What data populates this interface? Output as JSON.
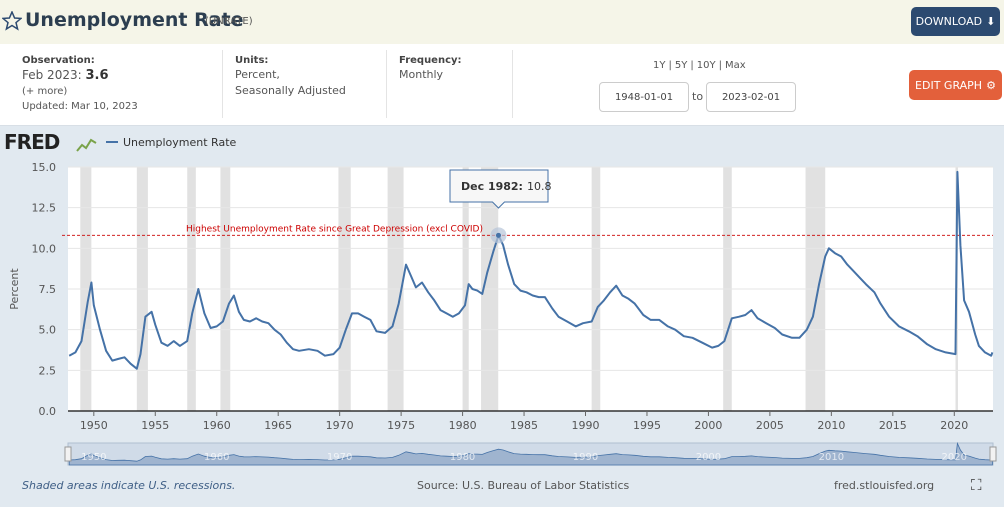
{
  "header": {
    "title": "Unemployment Rate",
    "series_id": "(UNRATE)",
    "download": "DOWNLOAD"
  },
  "info": {
    "observation": {
      "label": "Observation:",
      "date": "Feb 2023:",
      "value": "3.6",
      "more": "(+ more)",
      "updated": "Updated: Mar 10, 2023"
    },
    "units": {
      "label": "Units:",
      "lines": [
        "Percent,",
        "Seasonally Adjusted"
      ]
    },
    "frequency": {
      "label": "Frequency:",
      "value": "Monthly"
    },
    "range": {
      "links": [
        "1Y",
        "5Y",
        "10Y",
        "Max"
      ],
      "separator": "|",
      "start": "1948-01-01",
      "to": "to",
      "end": "2023-02-01"
    },
    "edit": "EDIT GRAPH"
  },
  "logo": "FRED",
  "chart_data": {
    "type": "line",
    "ylabel": "Percent",
    "xlim": [
      1947.9,
      2023.15
    ],
    "xticks": [
      1950,
      1955,
      1960,
      1965,
      1970,
      1975,
      1980,
      1985,
      1990,
      1995,
      2000,
      2005,
      2010,
      2015,
      2020
    ],
    "ylim": [
      0,
      15
    ],
    "yticks": [
      {
        "value": 0,
        "label": "0.0"
      },
      {
        "value": 2.5,
        "label": "2.5"
      },
      {
        "value": 5,
        "label": "5.0"
      },
      {
        "value": 7.5,
        "label": "7.5"
      },
      {
        "value": 10,
        "label": "10.0"
      },
      {
        "value": 12.5,
        "label": "12.5"
      },
      {
        "value": 15,
        "label": "15.0"
      }
    ],
    "grid": true,
    "x": [
      1948.0,
      1948.5,
      1949.0,
      1949.5,
      1949.8,
      1950.0,
      1950.5,
      1951.0,
      1951.5,
      1952.0,
      1952.5,
      1953.0,
      1953.5,
      1953.8,
      1954.2,
      1954.7,
      1955.0,
      1955.5,
      1956.0,
      1956.5,
      1957.0,
      1957.6,
      1958.0,
      1958.5,
      1959.0,
      1959.5,
      1960.0,
      1960.5,
      1961.0,
      1961.4,
      1961.8,
      1962.2,
      1962.7,
      1963.2,
      1963.7,
      1964.2,
      1964.7,
      1965.2,
      1965.7,
      1966.2,
      1966.7,
      1967.5,
      1968.2,
      1968.8,
      1969.5,
      1970.0,
      1970.5,
      1971.0,
      1971.5,
      1972.0,
      1972.5,
      1973.0,
      1973.7,
      1974.3,
      1974.8,
      1975.4,
      1975.8,
      1976.2,
      1976.7,
      1977.2,
      1977.7,
      1978.2,
      1978.7,
      1979.2,
      1979.7,
      1980.2,
      1980.5,
      1980.8,
      1981.2,
      1981.6,
      1982.0,
      1982.5,
      1982.92,
      1983.3,
      1983.7,
      1984.2,
      1984.7,
      1985.2,
      1985.7,
      1986.2,
      1986.7,
      1987.3,
      1987.8,
      1988.5,
      1989.2,
      1989.8,
      1990.5,
      1991.0,
      1991.5,
      1992.0,
      1992.5,
      1993.0,
      1993.5,
      1994.0,
      1994.7,
      1995.3,
      1996.0,
      1996.7,
      1997.3,
      1998.0,
      1998.7,
      1999.5,
      2000.3,
      2000.8,
      2001.3,
      2001.9,
      2002.5,
      2003.0,
      2003.5,
      2004.0,
      2004.7,
      2005.4,
      2006.0,
      2006.8,
      2007.4,
      2008.0,
      2008.5,
      2009.0,
      2009.5,
      2009.8,
      2010.3,
      2010.8,
      2011.3,
      2011.8,
      2012.3,
      2012.8,
      2013.5,
      2014.0,
      2014.7,
      2015.5,
      2016.3,
      2017.0,
      2017.8,
      2018.5,
      2019.3,
      2020.1,
      2020.25,
      2020.5,
      2020.8,
      2021.2,
      2021.7,
      2022.0,
      2022.5,
      2023.0,
      2023.1
    ],
    "series": [
      {
        "name": "Unemployment Rate",
        "color": "#4572a7",
        "values": [
          3.4,
          3.6,
          4.3,
          6.7,
          7.9,
          6.5,
          5.0,
          3.7,
          3.1,
          3.2,
          3.3,
          2.9,
          2.6,
          3.5,
          5.8,
          6.1,
          5.3,
          4.2,
          4.0,
          4.3,
          4.0,
          4.3,
          6.0,
          7.5,
          6.0,
          5.1,
          5.2,
          5.5,
          6.6,
          7.1,
          6.1,
          5.6,
          5.5,
          5.7,
          5.5,
          5.4,
          5.0,
          4.7,
          4.2,
          3.8,
          3.7,
          3.8,
          3.7,
          3.4,
          3.5,
          3.9,
          5.0,
          6.0,
          6.0,
          5.8,
          5.6,
          4.9,
          4.8,
          5.2,
          6.6,
          9.0,
          8.3,
          7.6,
          7.9,
          7.3,
          6.8,
          6.2,
          6.0,
          5.8,
          6.0,
          6.5,
          7.8,
          7.5,
          7.4,
          7.2,
          8.5,
          9.8,
          10.8,
          10.2,
          9.0,
          7.8,
          7.4,
          7.3,
          7.1,
          7.0,
          7.0,
          6.3,
          5.8,
          5.5,
          5.2,
          5.4,
          5.5,
          6.4,
          6.8,
          7.3,
          7.7,
          7.1,
          6.9,
          6.6,
          5.9,
          5.6,
          5.6,
          5.2,
          5.0,
          4.6,
          4.5,
          4.2,
          3.9,
          4.0,
          4.3,
          5.7,
          5.8,
          5.9,
          6.2,
          5.7,
          5.4,
          5.1,
          4.7,
          4.5,
          4.5,
          5.0,
          5.8,
          7.8,
          9.5,
          10.0,
          9.7,
          9.5,
          9.0,
          8.6,
          8.2,
          7.8,
          7.3,
          6.6,
          5.8,
          5.2,
          4.9,
          4.6,
          4.1,
          3.8,
          3.6,
          3.5,
          14.7,
          10.2,
          6.8,
          6.1,
          4.7,
          4.0,
          3.6,
          3.4,
          3.6
        ]
      }
    ],
    "recessions": [
      [
        1948.9,
        1949.8
      ],
      [
        1953.5,
        1954.4
      ],
      [
        1957.6,
        1958.3
      ],
      [
        1960.3,
        1961.1
      ],
      [
        1969.9,
        1970.9
      ],
      [
        1973.9,
        1975.2
      ],
      [
        1980.0,
        1980.5
      ],
      [
        1981.5,
        1982.9
      ],
      [
        1990.5,
        1991.2
      ],
      [
        2001.2,
        2001.9
      ],
      [
        2007.9,
        2009.5
      ],
      [
        2020.1,
        2020.3
      ]
    ],
    "annotations": [
      {
        "text": "Highest Unemployment Rate since Great Depression (excl COVID)",
        "y": 10.8,
        "color": "#cc0000"
      }
    ],
    "tooltip": {
      "label": "Dec 1982:",
      "value": 10.8,
      "x": 1982.92
    },
    "navigator_ticks": [
      1950,
      1960,
      1970,
      1980,
      1990,
      2000,
      2010,
      2020
    ]
  },
  "footer": {
    "recessions_note": "Shaded areas indicate U.S. recessions.",
    "source": "Source: U.S. Bureau of Labor Statistics",
    "site": "fred.stlouisfed.org"
  }
}
